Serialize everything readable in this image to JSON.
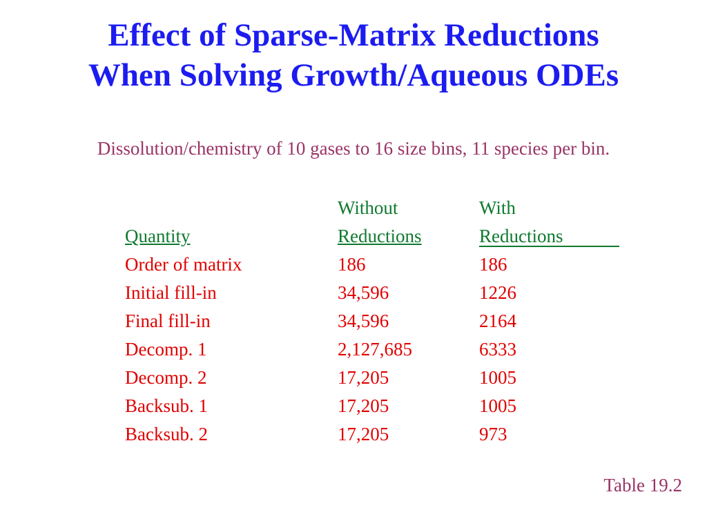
{
  "slide": {
    "title_line1": "Effect of Sparse-Matrix Reductions",
    "title_line2": "When Solving Growth/Aqueous ODEs",
    "subtitle": "Dissolution/chemistry of 10 gases to 16 size bins, 11 species per bin.",
    "table": {
      "header_top": [
        "",
        "Without",
        "With"
      ],
      "header_bottom": [
        "Quantity",
        "Reductions",
        "Reductions"
      ],
      "rows": [
        [
          "Order of matrix",
          "186",
          "186"
        ],
        [
          "Initial fill-in",
          "34,596",
          "1226"
        ],
        [
          "Final fill-in",
          "34,596",
          "2164"
        ],
        [
          "Decomp. 1",
          "2,127,685",
          "6333"
        ],
        [
          "Decomp. 2",
          "17,205",
          "1005"
        ],
        [
          "Backsub. 1",
          "17,205",
          "1005"
        ],
        [
          "Backsub. 2",
          "17,205",
          "973"
        ]
      ]
    },
    "footer": "Table 19.2",
    "colors": {
      "title": "#1c1cf0",
      "subtitle": "#993366",
      "header": "#0f7a2f",
      "rows": "#e00000"
    }
  }
}
